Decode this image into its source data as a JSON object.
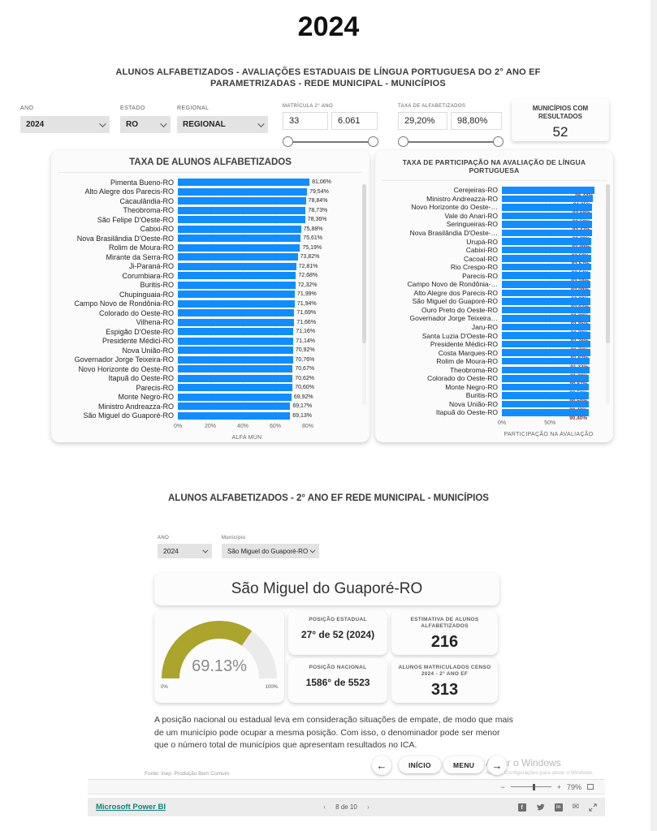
{
  "page": {
    "year": "2024",
    "subtitle": "ALUNOS ALFABETIZADOS -  AVALIAÇÕES ESTADUAIS DE LÍNGUA PORTUGUESA DO 2° ANO EF  PARAMETRIZADAS - REDE MUNICIPAL - MUNICÍPIOS"
  },
  "filters": {
    "ano_label": "ANO",
    "ano_value": "2024",
    "estado_label": "ESTADO",
    "estado_value": "RO",
    "regional_label": "REGIONAL",
    "regional_value": "REGIONAL",
    "matricula_label": "MATRÍCULA 2° ANO",
    "matricula_min": "33",
    "matricula_max": "6.061",
    "taxa_label": "TAXA DE ALFABETIZADOS",
    "taxa_min": "29,20%",
    "taxa_max": "98,80%",
    "municipios_label": "MUNICÍPIOS COM RESULTADOS",
    "municipios_value": "52"
  },
  "section2": {
    "title": "ALUNOS ALFABETIZADOS - 2° ANO EF  REDE MUNICIPAL - MUNICÍPIOS",
    "ano_label": "ANO",
    "ano_value": "2024",
    "municipio_label": "Município",
    "municipio_value": "São Miguel do Guaporé-RO"
  },
  "detail": {
    "municipality": "São Miguel do Guaporé-RO",
    "pos_estadual_label": "POSIÇÃO ESTADUAL",
    "pos_estadual_value": "27° de 52 (2024)",
    "estimativa_label": "ESTIMATIVA DE ALUNOS ALFABETIZADOS",
    "estimativa_value": "216",
    "pos_nacional_label": "POSIÇÃO NACIONAL",
    "pos_nacional_value": "1586° de 5523",
    "matriculados_label": "ALUNOS MATRICULADOS CENSO 2024 - 2° ANO EF",
    "matriculados_value": "313",
    "footnote": "A posição nacional ou estadual leva em consideração situações de empate, de modo que mais de um município pode ocupar a mesma posição. Com isso, o denominador pode ser menor que o número total de municípios que apresentam resultados no ICA."
  },
  "nav": {
    "back": "←",
    "inicio": "INÍCIO",
    "menu": "MENU",
    "forward": "→"
  },
  "watermark": {
    "line1": "Ativar o Windows",
    "line2": "Acesse Configurações para ativar o Windows."
  },
  "fonte": "Fonte: Inep. Produção Bem Comum",
  "bottombar": {
    "zoom_minus": "−",
    "zoom_plus": "+",
    "zoom_percent": "79%",
    "brand": "Microsoft Power BI",
    "pager_prev": "‹",
    "pager": "8 de 10",
    "pager_next": "›",
    "facebook_letter": "f",
    "linkedin_letter": "in",
    "mail_glyph": "✉"
  },
  "colors": {
    "bar_blue": "#118DFF",
    "gauge_olive": "#ABA42D",
    "inside_label_red": "#8b3a2e"
  },
  "chart_data": [
    {
      "id": "alfa",
      "type": "bar",
      "orientation": "horizontal",
      "title": "TAXA DE ALUNOS ALFABETIZADOS",
      "xlabel": "ALFA MUN",
      "xlim": [
        0,
        85
      ],
      "x_tick_values": [
        0,
        20,
        40,
        60,
        80
      ],
      "x_ticks": [
        "0%",
        "20%",
        "40%",
        "60%",
        "80%"
      ],
      "grid": true,
      "bar_color": "#118DFF",
      "value_label_position": "outside",
      "value_color": "#252423",
      "categories": [
        "Pimenta Bueno-RO",
        "Alto Alegre dos Parecis-RO",
        "Cacaulândia-RO",
        "Theobroma-RO",
        "São Felipe D'Oeste-RO",
        "Cabixi-RO",
        "Nova Brasilândia D'Oeste-RO",
        "Rolim de Moura-RO",
        "Mirante da Serra-RO",
        "Ji-Paraná-RO",
        "Corumbiara-RO",
        "Buritis-RO",
        "Chupinguaia-RO",
        "Campo Novo de Rondônia-RO",
        "Colorado do Oeste-RO",
        "Vilhena-RO",
        "Espigão D'Oeste-RO",
        "Presidente Médici-RO",
        "Nova União-RO",
        "Governador Jorge Teixeira-RO",
        "Novo Horizonte do Oeste-RO",
        "Itapuã do Oeste-RO",
        "Parecis-RO",
        "Monte Negro-RO",
        "Ministro Andreazza-RO",
        "São Miguel do Guaporé-RO"
      ],
      "values": [
        81.06,
        79.54,
        78.84,
        78.73,
        78.36,
        75.88,
        75.61,
        75.19,
        73.82,
        72.81,
        72.68,
        72.32,
        71.99,
        71.94,
        71.69,
        71.66,
        71.16,
        71.14,
        70.92,
        70.76,
        70.67,
        70.62,
        70.6,
        69.92,
        69.17,
        69.13
      ],
      "value_labels": [
        "81,06%",
        "79,54%",
        "78,84%",
        "78,73%",
        "78,36%",
        "75,88%",
        "75,61%",
        "75,19%",
        "73,82%",
        "72,81%",
        "72,68%",
        "72,32%",
        "71,99%",
        "71,94%",
        "71,69%",
        "71,66%",
        "71,16%",
        "71,14%",
        "70,92%",
        "70,76%",
        "70,67%",
        "70,62%",
        "70,60%",
        "69,92%",
        "69,17%",
        "69,13%"
      ]
    },
    {
      "id": "part",
      "type": "bar",
      "orientation": "horizontal",
      "title": "TAXA DE PARTICIPAÇÃO NA AVALIAÇÃO DE LÍNGUA PORTUGUESA",
      "xlabel": "PARTICIPAÇÃO NA AVALIAÇÃO",
      "xlim": [
        0,
        97
      ],
      "x_tick_values": [
        0,
        50
      ],
      "x_ticks": [
        "0%",
        "50%"
      ],
      "grid": true,
      "bar_color": "#118DFF",
      "value_label_position": "inside",
      "value_color": "#8b3a2e",
      "categories": [
        "Cerejeiras-RO",
        "Ministro Andreazza-RO",
        "Novo Horizonte do Oeste-…",
        "Vale do Anari-RO",
        "Seringueiras-RO",
        "Nova Brasilândia D'Oeste-…",
        "Urupá-RO",
        "Cabixi-RO",
        "Cacoal-RO",
        "Rio Crespo-RO",
        "Parecis-RO",
        "Campo Novo de Rondônia-…",
        "Alto Alegre dos Parecis-RO",
        "São Miguel do Guaporé-RO",
        "Ouro Preto do Oeste-RO",
        "Governador Jorge Teixeira…",
        "Jaru-RO",
        "Santa Luzia D'Oeste-RO",
        "Presidente Médici-RO",
        "Costa Marques-RO",
        "Rolim de Moura-RO",
        "Theobroma-RO",
        "Colorado do Oeste-RO",
        "Monte Negro-RO",
        "Buritis-RO",
        "Nova União-RO",
        "Itapuã do Oeste-RO"
      ],
      "values": [
        96.44,
        94.25,
        93.58,
        93.5,
        93.47,
        93.39,
        92.99,
        92.59,
        92.57,
        92.54,
        92.19,
        92.09,
        92.08,
        92.07,
        91.88,
        91.85,
        91.79,
        91.76,
        91.72,
        91.63,
        91.33,
        91.2,
        90.67,
        90.53,
        90.5,
        90.43,
        90.4
      ],
      "value_labels": [
        "96,44%",
        "94,25%",
        "93,58%",
        "93,50%",
        "93,47%",
        "93,39%",
        "92,99%",
        "92,59%",
        "92,57%",
        "92,54%",
        "92,19%",
        "92,09%",
        "92,08%",
        "92,07%",
        "91,88%",
        "91,85%",
        "91,79%",
        "91,76%",
        "91,72%",
        "91,63%",
        "91,33%",
        "91,20%",
        "90,67%",
        "90,53%",
        "90,50%",
        "90,43%",
        "90,40%"
      ]
    },
    {
      "id": "gauge",
      "type": "gauge",
      "value": 69.13,
      "label": "69.13%",
      "min_label": "0%",
      "max_label": "100%",
      "color": "#ABA42D"
    }
  ]
}
